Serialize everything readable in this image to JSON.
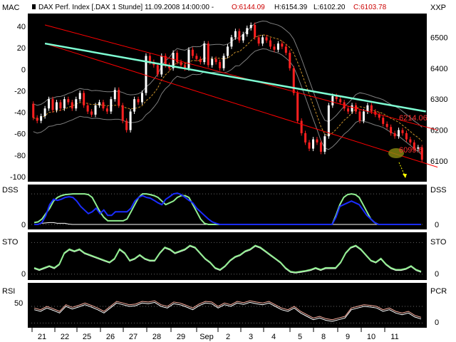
{
  "header": {
    "title": "DAX Perf. Index [.DAX  1 Stunde] 11.09.2008 14:00:00 - ",
    "open": "O:6144.09",
    "high": "H:6154.39",
    "low": "L:6102.20",
    "close": "C:6103.78"
  },
  "colors": {
    "background": "#000000",
    "frame": "#ffffff",
    "candle_up": "#ffffff",
    "candle_down": "#ff2020",
    "bollinger": "#7f7f7f",
    "ma_dash": "#c8902a",
    "trend_channel": "#ff0000",
    "trend_line": "#7fffd4",
    "fast_line": "#90ee90",
    "slow_line": "#ffffff",
    "dss_fast": "#1a2cff",
    "rsi_pcr": "#ffb0a0",
    "highlight": "#8a8a10",
    "arrow": "#ffff00"
  },
  "chart_data": [
    {
      "type": "candlestick",
      "panel": "price",
      "left_axis_label": "MAC",
      "right_axis_label": "XXP",
      "left_ticks": [
        "40",
        "20",
        "0",
        "-20",
        "-40",
        "-60",
        "-80",
        "-100"
      ],
      "right_ticks": [
        "6500",
        "6400",
        "6300",
        "6200",
        "6100"
      ],
      "ylim": [
        6040,
        6570
      ],
      "annotations": [
        "6214.06",
        "6099.6"
      ],
      "trend_line_endpoints": [
        [
          3,
          6480
        ],
        [
          101,
          6260
        ]
      ],
      "channel_upper": [
        [
          3,
          6540
        ],
        [
          104,
          6200
        ]
      ],
      "channel_lower": [
        [
          3,
          6480
        ],
        [
          104,
          6080
        ]
      ],
      "series": [
        {
          "values": [
            6285,
            6240,
            6230,
            6245,
            6270,
            6300,
            6265,
            6290,
            6270,
            6300,
            6290,
            6270,
            6300,
            6320,
            6280,
            6260,
            6250,
            6280,
            6290,
            6270,
            6260,
            6300,
            6330,
            6280,
            6230,
            6200,
            6260,
            6300,
            6290,
            6320,
            6440,
            6420,
            6410,
            6380,
            6440,
            6410,
            6400,
            6450,
            6420,
            6410,
            6400,
            6460,
            6440,
            6430,
            6420,
            6480,
            6410,
            6430,
            6420,
            6400,
            6440,
            6470,
            6500,
            6520,
            6490,
            6510,
            6530,
            6540,
            6500,
            6480,
            6500,
            6490,
            6470,
            6460,
            6480,
            6470,
            6450,
            6400,
            6320,
            6230,
            6190,
            6160,
            6140,
            6170,
            6160,
            6130,
            6180,
            6280,
            6310,
            6300,
            6290,
            6270,
            6260,
            6280,
            6260,
            6230,
            6260,
            6280,
            6260,
            6250,
            6240,
            6220,
            6210,
            6190,
            6180,
            6200,
            6190,
            6170,
            6160,
            6140,
            6144
          ]
        },
        {
          "values": [
            6240,
            6230,
            6245,
            6270,
            6300,
            6265,
            6290,
            6270,
            6300,
            6290,
            6270,
            6300,
            6320,
            6280,
            6260,
            6250,
            6280,
            6290,
            6270,
            6260,
            6300,
            6330,
            6280,
            6230,
            6200,
            6260,
            6300,
            6290,
            6320,
            6440,
            6420,
            6410,
            6380,
            6440,
            6410,
            6400,
            6450,
            6420,
            6410,
            6400,
            6460,
            6440,
            6430,
            6420,
            6480,
            6410,
            6430,
            6420,
            6400,
            6440,
            6470,
            6500,
            6520,
            6490,
            6510,
            6530,
            6540,
            6500,
            6480,
            6500,
            6490,
            6470,
            6460,
            6480,
            6470,
            6450,
            6400,
            6320,
            6230,
            6190,
            6160,
            6140,
            6170,
            6160,
            6130,
            6180,
            6280,
            6310,
            6300,
            6290,
            6270,
            6260,
            6280,
            6260,
            6230,
            6260,
            6280,
            6260,
            6250,
            6240,
            6220,
            6210,
            6190,
            6180,
            6200,
            6190,
            6170,
            6160,
            6140,
            6144,
            6104
          ]
        }
      ]
    },
    {
      "type": "line",
      "panel": "DSS",
      "left_label": "DSS",
      "right_label": "DSS",
      "ylim": [
        -5,
        110
      ],
      "ticks": [
        "0"
      ],
      "series": [
        {
          "values": [
            5,
            6,
            8,
            9,
            10,
            10,
            8,
            8,
            8,
            6,
            5,
            5,
            5,
            5,
            5,
            5,
            5,
            5,
            5,
            5,
            5,
            5,
            5,
            5,
            5,
            5,
            5,
            5,
            5,
            5,
            5,
            5,
            5,
            5,
            5,
            5,
            5,
            5,
            5,
            5,
            5,
            5,
            5,
            5,
            5,
            5,
            5,
            5,
            5,
            5,
            5,
            5,
            5,
            5,
            5,
            5,
            5,
            5,
            5,
            5,
            5,
            5,
            5,
            5,
            5,
            5,
            5,
            5,
            5,
            5,
            5,
            5,
            5,
            5,
            5,
            5,
            5,
            5,
            5,
            5,
            5,
            5,
            5,
            5,
            5,
            5,
            5,
            5,
            5,
            5,
            5,
            5,
            5,
            5,
            5,
            5,
            5,
            5,
            5,
            5,
            5,
            5
          ]
        },
        {
          "values": [
            10,
            12,
            20,
            35,
            50,
            70,
            80,
            85,
            88,
            89,
            90,
            90,
            90,
            90,
            88,
            80,
            60,
            40,
            25,
            15,
            15,
            15,
            15,
            15,
            20,
            40,
            60,
            80,
            90,
            90,
            88,
            85,
            80,
            70,
            60,
            65,
            70,
            80,
            85,
            85,
            80,
            60,
            40,
            20,
            8,
            5,
            5,
            5,
            5,
            5,
            5,
            5,
            5,
            5,
            5,
            5,
            5,
            5,
            5,
            5,
            5,
            5,
            5,
            5,
            5,
            5,
            5,
            5,
            5,
            5,
            5,
            5,
            5,
            5,
            5,
            5,
            5,
            5,
            30,
            60,
            80,
            88,
            90,
            88,
            80,
            60,
            40,
            20,
            10,
            5,
            5,
            5,
            5,
            5,
            5,
            5,
            5,
            5,
            5,
            5,
            5
          ]
        },
        {
          "values": [
            5,
            5,
            10,
            30,
            60,
            75,
            72,
            75,
            80,
            82,
            80,
            70,
            55,
            45,
            35,
            40,
            50,
            35,
            45,
            30,
            30,
            40,
            40,
            40,
            40,
            50,
            70,
            80,
            85,
            80,
            78,
            72,
            65,
            60,
            75,
            82,
            90,
            92,
            88,
            80,
            72,
            65,
            50,
            40,
            30,
            20,
            12,
            8,
            5,
            5,
            5,
            5,
            5,
            5,
            5,
            5,
            5,
            5,
            5,
            5,
            5,
            5,
            5,
            5,
            5,
            5,
            5,
            5,
            5,
            5,
            5,
            5,
            5,
            5,
            5,
            5,
            5,
            5,
            25,
            55,
            60,
            65,
            70,
            65,
            60,
            45,
            30,
            20,
            10,
            5,
            5,
            5,
            5,
            5,
            5,
            5,
            5,
            5,
            5,
            5,
            5
          ]
        }
      ]
    },
    {
      "type": "line",
      "panel": "STO",
      "left_label": "STO",
      "right_label": "STO",
      "ylim": [
        -5,
        110
      ],
      "ticks": [
        "0"
      ],
      "series": [
        {
          "values": [
            20,
            15,
            20,
            25,
            20,
            30,
            60,
            70,
            65,
            70,
            60,
            55,
            50,
            45,
            40,
            35,
            45,
            70,
            60,
            40,
            45,
            55,
            45,
            40,
            40,
            60,
            75,
            70,
            60,
            65,
            70,
            80,
            75,
            60,
            45,
            35,
            20,
            15,
            25,
            40,
            50,
            55,
            65,
            70,
            80,
            75,
            65,
            55,
            45,
            35,
            20,
            10,
            8,
            10,
            12,
            15,
            20,
            15,
            20,
            20,
            20,
            35,
            60,
            75,
            80,
            70,
            55,
            40,
            35,
            45,
            30,
            20,
            15,
            15,
            18,
            25,
            15,
            10
          ]
        },
        {
          "values": [
            22,
            17,
            22,
            27,
            22,
            32,
            62,
            72,
            67,
            72,
            62,
            57,
            52,
            47,
            42,
            37,
            47,
            72,
            62,
            42,
            47,
            57,
            47,
            42,
            42,
            62,
            77,
            72,
            62,
            67,
            72,
            82,
            77,
            62,
            47,
            37,
            22,
            17,
            27,
            42,
            52,
            57,
            67,
            72,
            82,
            77,
            67,
            57,
            47,
            37,
            22,
            12,
            10,
            12,
            14,
            17,
            22,
            17,
            22,
            22,
            22,
            37,
            62,
            77,
            82,
            72,
            57,
            42,
            37,
            47,
            32,
            22,
            17,
            17,
            20,
            27,
            17,
            12
          ]
        }
      ]
    },
    {
      "type": "line",
      "panel": "RSI/PCR",
      "left_label": "RSI",
      "right_label": "PCR",
      "ylim": [
        -10,
        110
      ],
      "left_ticks": [
        "50"
      ],
      "right_ticks": [
        "0"
      ],
      "series": [
        {
          "values": [
            40,
            35,
            45,
            38,
            30,
            50,
            42,
            48,
            55,
            48,
            40,
            30,
            45,
            60,
            55,
            50,
            52,
            60,
            58,
            62,
            50,
            45,
            58,
            55,
            48,
            40,
            52,
            60,
            58,
            45,
            55,
            50,
            60,
            56,
            62,
            58,
            55,
            60,
            50,
            40,
            35,
            45,
            30,
            20,
            10,
            15,
            8,
            5,
            10,
            15,
            40,
            45,
            50,
            48,
            45,
            35,
            40,
            30,
            25,
            30,
            18,
            12
          ]
        },
        {
          "values": [
            45,
            40,
            50,
            43,
            35,
            55,
            47,
            53,
            60,
            53,
            45,
            35,
            50,
            65,
            60,
            55,
            57,
            65,
            63,
            67,
            55,
            50,
            63,
            60,
            53,
            45,
            57,
            65,
            63,
            50,
            60,
            55,
            65,
            61,
            67,
            63,
            60,
            65,
            55,
            45,
            40,
            50,
            35,
            25,
            15,
            20,
            13,
            10,
            15,
            20,
            45,
            50,
            55,
            53,
            50,
            40,
            45,
            35,
            30,
            35,
            23,
            17
          ]
        }
      ]
    },
    {
      "type": "axis",
      "panel": "x",
      "tick_labels": [
        "21",
        "22",
        "25",
        "26",
        "27",
        "28",
        "29",
        "Sep",
        "2",
        "3",
        "4",
        "5",
        "8",
        "9",
        "10",
        "11"
      ]
    }
  ]
}
